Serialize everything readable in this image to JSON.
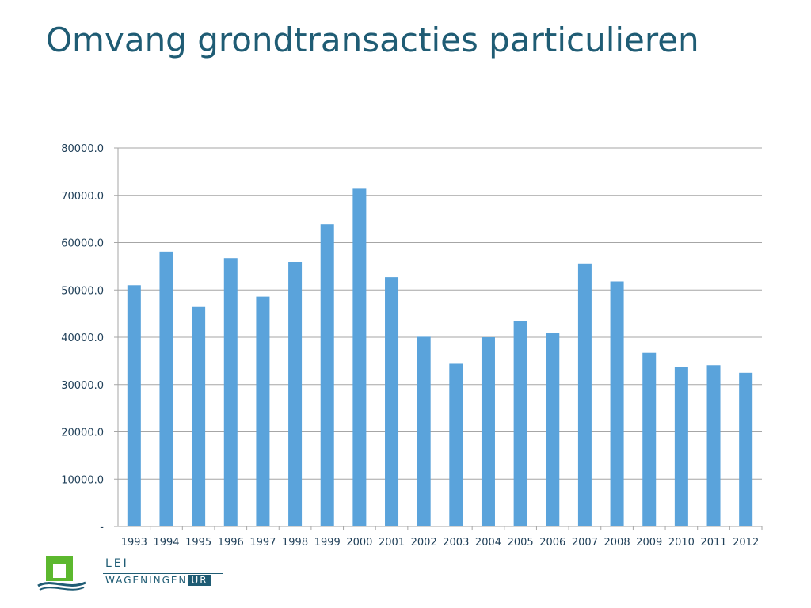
{
  "slide": {
    "title": "Omvang grondtransacties particulieren"
  },
  "logo": {
    "lei": "LEI",
    "wageningen": "WAGENINGEN",
    "ur": "UR"
  },
  "colors": {
    "bar": "#5aa3db",
    "title": "#1f5c74",
    "grid": "#a6a6a6",
    "logo_green": "#5cb82e",
    "logo_blue": "#1f5c74"
  },
  "chart_data": {
    "type": "bar",
    "title": "",
    "xlabel": "",
    "ylabel": "",
    "categories": [
      "1993",
      "1994",
      "1995",
      "1996",
      "1997",
      "1998",
      "1999",
      "2000",
      "2001",
      "2002",
      "2003",
      "2004",
      "2005",
      "2006",
      "2007",
      "2008",
      "2009",
      "2010",
      "2011",
      "2012"
    ],
    "values": [
      51000,
      58100,
      46400,
      56700,
      48600,
      55900,
      63900,
      71400,
      52700,
      40100,
      34400,
      40000,
      43500,
      41000,
      55600,
      51800,
      36700,
      33800,
      34100,
      32500
    ],
    "ylim": [
      0,
      80000
    ],
    "yticks": [
      0,
      10000,
      20000,
      30000,
      40000,
      50000,
      60000,
      70000,
      80000
    ],
    "ytick_labels": [
      "-",
      "10000.0",
      "20000.0",
      "30000.0",
      "40000.0",
      "50000.0",
      "60000.0",
      "70000.0",
      "80000.0"
    ],
    "grid": true,
    "legend": "none"
  }
}
